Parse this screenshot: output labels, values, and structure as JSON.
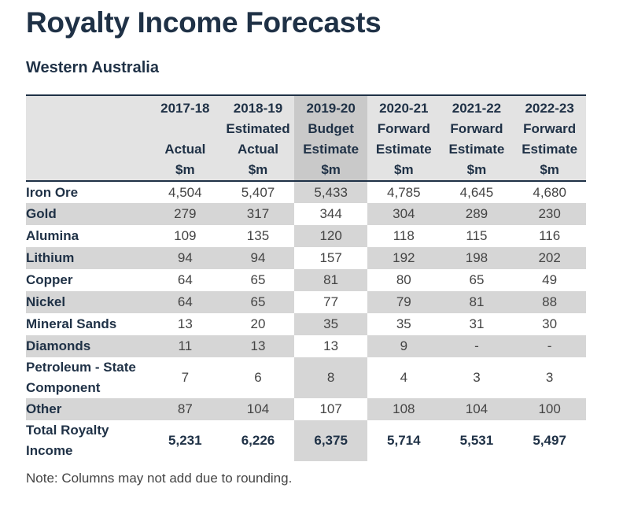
{
  "title": "Royalty Income Forecasts",
  "subtitle": "Western Australia",
  "table": {
    "columns": [
      {
        "year": "2017-18",
        "line2": "",
        "line3": "Actual",
        "unit": "$m"
      },
      {
        "year": "2018-19",
        "line2": "Estimated",
        "line3": "Actual",
        "unit": "$m"
      },
      {
        "year": "2019-20",
        "line2": "Budget",
        "line3": "Estimate",
        "unit": "$m"
      },
      {
        "year": "2020-21",
        "line2": "Forward",
        "line3": "Estimate",
        "unit": "$m"
      },
      {
        "year": "2021-22",
        "line2": "Forward",
        "line3": "Estimate",
        "unit": "$m"
      },
      {
        "year": "2022-23",
        "line2": "Forward",
        "line3": "Estimate",
        "unit": "$m"
      }
    ],
    "rows": [
      {
        "label": "Iron Ore",
        "values": [
          "4,504",
          "5,407",
          "5,433",
          "4,785",
          "4,645",
          "4,680"
        ]
      },
      {
        "label": "Gold",
        "values": [
          "279",
          "317",
          "344",
          "304",
          "289",
          "230"
        ]
      },
      {
        "label": "Alumina",
        "values": [
          "109",
          "135",
          "120",
          "118",
          "115",
          "116"
        ]
      },
      {
        "label": "Lithium",
        "values": [
          "94",
          "94",
          "157",
          "192",
          "198",
          "202"
        ]
      },
      {
        "label": "Copper",
        "values": [
          "64",
          "65",
          "81",
          "80",
          "65",
          "49"
        ]
      },
      {
        "label": "Nickel",
        "values": [
          "64",
          "65",
          "77",
          "79",
          "81",
          "88"
        ]
      },
      {
        "label": "Mineral Sands",
        "values": [
          "13",
          "20",
          "35",
          "35",
          "31",
          "30"
        ]
      },
      {
        "label": "Diamonds",
        "values": [
          "11",
          "13",
          "13",
          "9",
          "-",
          "-"
        ]
      },
      {
        "label_line1": "Petroleum - State",
        "label_line2": "Component",
        "values": [
          "7",
          "6",
          "8",
          "4",
          "3",
          "3"
        ]
      },
      {
        "label": "Other",
        "values": [
          "87",
          "104",
          "107",
          "108",
          "104",
          "100"
        ]
      }
    ],
    "total": {
      "label_line1": "Total Royalty",
      "label_line2": "Income",
      "values": [
        "5,231",
        "6,226",
        "6,375",
        "5,714",
        "5,531",
        "5,497"
      ]
    }
  },
  "note": "Note: Columns may not add due to rounding."
}
